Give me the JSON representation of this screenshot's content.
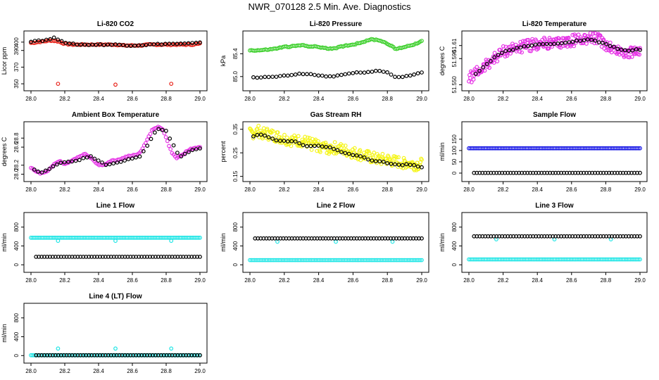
{
  "figure_title": "NWR_070128  2.5 Min. Ave. Diagnostics",
  "colors": {
    "black": "#000000",
    "red": "#e8231a",
    "green": "#3ccf2b",
    "magenta": "#e633e6",
    "yellow": "#f5f51a",
    "blue": "#1a1ae6",
    "cyan": "#22e6e6"
  },
  "chart_data": [
    {
      "id": "li820-co2",
      "type": "scatter",
      "title": "Li-820 CO2",
      "ylabel": "Licor ppm",
      "xlim": [
        28.0,
        29.0
      ],
      "ylim": [
        345,
        410
      ],
      "xticks": [
        "28.0",
        "28.2",
        "28.4",
        "28.6",
        "28.8",
        "29.0"
      ],
      "yticks": [
        "350",
        "370",
        "390",
        "400"
      ],
      "series": [
        {
          "name": "red",
          "color": "red",
          "x": [
            28.0,
            28.04,
            28.08,
            28.12,
            28.16,
            28.2,
            28.25,
            28.3,
            28.35,
            28.4,
            28.45,
            28.5,
            28.55,
            28.6,
            28.65,
            28.7,
            28.75,
            28.8,
            28.85,
            28.9,
            28.95,
            29.0,
            28.16,
            28.5,
            28.83
          ],
          "y": [
            399,
            400,
            401,
            402,
            401,
            398,
            397,
            397,
            397,
            397,
            397,
            397,
            396,
            396,
            396,
            397,
            397,
            397,
            397,
            397,
            397,
            398,
            350,
            349,
            350
          ]
        },
        {
          "name": "black",
          "color": "black",
          "x": [
            28.0,
            28.04,
            28.08,
            28.12,
            28.14,
            28.18,
            28.22,
            28.3,
            28.4,
            28.5,
            28.6,
            28.7,
            28.8,
            28.9,
            29.0
          ],
          "y": [
            401,
            402,
            402,
            404,
            405,
            402,
            398,
            397,
            397,
            397,
            396,
            397,
            398,
            398,
            399
          ]
        }
      ]
    },
    {
      "id": "li820-pressure",
      "type": "scatter",
      "title": "Li-820 Pressure",
      "ylabel": "kPa",
      "xlim": [
        28.0,
        29.0
      ],
      "ylim": [
        84.8,
        85.75
      ],
      "xticks": [
        "28.0",
        "28.2",
        "28.4",
        "28.6",
        "28.8",
        "29.0"
      ],
      "yticks": [
        "85.0",
        "85.4"
      ],
      "series": [
        {
          "name": "green",
          "color": "green",
          "x": [
            28.0,
            28.05,
            28.1,
            28.15,
            28.2,
            28.25,
            28.3,
            28.35,
            28.4,
            28.45,
            28.5,
            28.55,
            28.6,
            28.65,
            28.7,
            28.75,
            28.8,
            28.85,
            28.9,
            28.95,
            29.0
          ],
          "y": [
            85.46,
            85.46,
            85.47,
            85.49,
            85.52,
            85.53,
            85.55,
            85.53,
            85.52,
            85.49,
            85.5,
            85.54,
            85.56,
            85.6,
            85.65,
            85.64,
            85.58,
            85.48,
            85.52,
            85.56,
            85.62
          ]
        },
        {
          "name": "black",
          "color": "black",
          "x": [
            28.02,
            28.06,
            28.1,
            28.15,
            28.2,
            28.25,
            28.3,
            28.35,
            28.4,
            28.45,
            28.5,
            28.55,
            28.6,
            28.65,
            28.7,
            28.75,
            28.8,
            28.85,
            28.9,
            28.95,
            29.0
          ],
          "y": [
            84.98,
            84.98,
            84.99,
            85.0,
            85.01,
            85.03,
            85.05,
            85.04,
            85.02,
            85.0,
            85.01,
            85.04,
            85.06,
            85.07,
            85.09,
            85.1,
            85.07,
            84.99,
            85.0,
            85.03,
            85.08
          ]
        }
      ]
    },
    {
      "id": "li820-temperature",
      "type": "scatter",
      "title": "Li-820 Temperature",
      "ylabel": "degrees C",
      "xlim": [
        28.0,
        29.0
      ],
      "ylim": [
        51.545,
        51.628
      ],
      "xticks": [
        "28.0",
        "28.2",
        "28.4",
        "28.6",
        "28.8",
        "29.0"
      ],
      "yticks": [
        "51.550",
        "51.590",
        "51.61"
      ],
      "series": [
        {
          "name": "magenta",
          "color": "magenta",
          "x": [
            28.0,
            28.04,
            28.08,
            28.12,
            28.16,
            28.2,
            28.25,
            28.3,
            28.35,
            28.4,
            28.45,
            28.5,
            28.55,
            28.6,
            28.65,
            28.7,
            28.75,
            28.8,
            28.85,
            28.9,
            28.95,
            29.0
          ],
          "y": [
            51.56,
            51.567,
            51.575,
            51.585,
            51.593,
            51.6,
            51.605,
            51.608,
            51.61,
            51.612,
            51.613,
            51.612,
            51.615,
            51.617,
            51.62,
            51.622,
            51.62,
            51.612,
            51.604,
            51.6,
            51.598,
            51.605
          ]
        },
        {
          "name": "black",
          "color": "black",
          "x": [
            28.04,
            28.1,
            28.15,
            28.2,
            28.3,
            28.4,
            28.5,
            28.6,
            28.7,
            28.8,
            28.9,
            29.0
          ],
          "y": [
            51.566,
            51.58,
            51.592,
            51.6,
            51.607,
            51.612,
            51.612,
            51.616,
            51.62,
            51.612,
            51.602,
            51.604
          ]
        }
      ]
    },
    {
      "id": "ambient-box-temperature",
      "type": "scatter",
      "title": "Ambient Box Temperature",
      "ylabel": "degrees C",
      "xlim": [
        28.0,
        29.0
      ],
      "ylim": [
        27.9,
        29.1
      ],
      "xticks": [
        "28.0",
        "28.2",
        "28.4",
        "28.6",
        "28.8",
        "29.0"
      ],
      "yticks": [
        "28.0",
        "28.2",
        "28.6",
        "28.8"
      ],
      "series": [
        {
          "name": "magenta",
          "color": "magenta",
          "x": [
            28.0,
            28.03,
            28.06,
            28.1,
            28.13,
            28.17,
            28.2,
            28.24,
            28.28,
            28.32,
            28.36,
            28.4,
            28.44,
            28.48,
            28.52,
            28.56,
            28.6,
            28.64,
            28.68,
            28.72,
            28.75,
            28.78,
            28.8,
            28.83,
            28.86,
            28.9,
            28.94,
            28.97,
            29.0
          ],
          "y": [
            28.15,
            28.05,
            28.02,
            28.08,
            28.2,
            28.3,
            28.22,
            28.3,
            28.38,
            28.45,
            28.35,
            28.2,
            28.22,
            28.3,
            28.32,
            28.38,
            28.42,
            28.45,
            28.7,
            29.0,
            29.05,
            29.0,
            28.8,
            28.5,
            28.35,
            28.45,
            28.55,
            28.58,
            28.6
          ]
        },
        {
          "name": "black",
          "color": "black",
          "x": [
            28.02,
            28.06,
            28.12,
            28.18,
            28.25,
            28.35,
            28.45,
            28.55,
            28.65,
            28.75,
            28.8,
            28.88,
            28.95,
            29.0
          ],
          "y": [
            28.1,
            28.02,
            28.15,
            28.25,
            28.28,
            28.4,
            28.2,
            28.3,
            28.4,
            29.02,
            28.95,
            28.38,
            28.52,
            28.58
          ]
        }
      ]
    },
    {
      "id": "gas-stream-rh",
      "type": "scatter",
      "title": "Gas Stream RH",
      "ylabel": "percent",
      "xlim": [
        28.0,
        29.0
      ],
      "ylim": [
        0.14,
        0.37
      ],
      "xticks": [
        "28.0",
        "28.2",
        "28.4",
        "28.6",
        "28.8",
        "29.0"
      ],
      "yticks": [
        "0.15",
        "0.25",
        "0.35"
      ],
      "series": [
        {
          "name": "yellow",
          "color": "yellow",
          "x": [
            28.0,
            28.05,
            28.1,
            28.15,
            28.2,
            28.25,
            28.3,
            28.35,
            28.4,
            28.45,
            28.5,
            28.55,
            28.6,
            28.65,
            28.7,
            28.75,
            28.8,
            28.85,
            28.9,
            28.95,
            29.0
          ],
          "y": [
            0.33,
            0.34,
            0.33,
            0.32,
            0.31,
            0.3,
            0.3,
            0.29,
            0.28,
            0.27,
            0.27,
            0.26,
            0.25,
            0.24,
            0.23,
            0.22,
            0.22,
            0.21,
            0.21,
            0.2,
            0.2
          ]
        },
        {
          "name": "black",
          "color": "black",
          "x": [
            28.02,
            28.07,
            28.12,
            28.18,
            28.25,
            28.32,
            28.4,
            28.48,
            28.55,
            28.62,
            28.7,
            28.78,
            28.86,
            28.94,
            29.0
          ],
          "y": [
            0.32,
            0.33,
            0.31,
            0.3,
            0.3,
            0.28,
            0.28,
            0.27,
            0.25,
            0.24,
            0.22,
            0.21,
            0.2,
            0.2,
            0.19
          ]
        }
      ]
    },
    {
      "id": "sample-flow",
      "type": "scatter",
      "title": "Sample Flow",
      "ylabel": "ml/min",
      "xlim": [
        28.0,
        29.0
      ],
      "ylim": [
        -25,
        215
      ],
      "xticks": [
        "28.0",
        "28.2",
        "28.4",
        "28.6",
        "28.8",
        "29.0"
      ],
      "yticks": [
        "0",
        "50",
        "100",
        "150"
      ],
      "series": [
        {
          "name": "blue",
          "color": "blue",
          "x": [
            28.0,
            29.0
          ],
          "y": [
            110,
            110
          ]
        },
        {
          "name": "black",
          "color": "black",
          "x": [
            28.03,
            29.0
          ],
          "y": [
            1,
            1
          ]
        }
      ]
    },
    {
      "id": "line1-flow",
      "type": "scatter",
      "title": "Line 1 Flow",
      "ylabel": "ml/min",
      "xlim": [
        28.0,
        29.0
      ],
      "ylim": [
        -100,
        1050
      ],
      "xticks": [
        "28.0",
        "28.2",
        "28.4",
        "28.6",
        "28.8",
        "29.0"
      ],
      "yticks": [
        "0",
        "400",
        "800"
      ],
      "series": [
        {
          "name": "cyan",
          "color": "cyan",
          "x": [
            28.0,
            29.0,
            28.16,
            28.5,
            28.83
          ],
          "y": [
            575,
            575,
            510,
            510,
            510
          ]
        },
        {
          "name": "black",
          "color": "black",
          "x": [
            28.03,
            29.0
          ],
          "y": [
            170,
            170
          ]
        }
      ]
    },
    {
      "id": "line2-flow",
      "type": "scatter",
      "title": "Line 2 Flow",
      "ylabel": "ml/min",
      "xlim": [
        28.0,
        29.0
      ],
      "ylim": [
        -100,
        1050
      ],
      "xticks": [
        "28.0",
        "28.2",
        "28.4",
        "28.6",
        "28.8",
        "29.0"
      ],
      "yticks": [
        "0",
        "400",
        "800"
      ],
      "series": [
        {
          "name": "cyan",
          "color": "cyan",
          "x": [
            28.0,
            29.0,
            28.16,
            28.5,
            28.83
          ],
          "y": [
            100,
            100,
            490,
            490,
            490
          ]
        },
        {
          "name": "black",
          "color": "black",
          "x": [
            28.03,
            29.0
          ],
          "y": [
            560,
            560
          ]
        }
      ]
    },
    {
      "id": "line3-flow",
      "type": "scatter",
      "title": "Line 3 Flow",
      "ylabel": "ml/min",
      "xlim": [
        28.0,
        29.0
      ],
      "ylim": [
        -100,
        1050
      ],
      "xticks": [
        "28.0",
        "28.2",
        "28.4",
        "28.6",
        "28.8",
        "29.0"
      ],
      "yticks": [
        "0",
        "400",
        "800"
      ],
      "series": [
        {
          "name": "cyan",
          "color": "cyan",
          "x": [
            28.0,
            29.0,
            28.16,
            28.5,
            28.83
          ],
          "y": [
            115,
            115,
            540,
            540,
            540
          ]
        },
        {
          "name": "black",
          "color": "black",
          "x": [
            28.03,
            29.0
          ],
          "y": [
            605,
            605
          ]
        }
      ]
    },
    {
      "id": "line4-flow",
      "type": "scatter",
      "title": "Line 4 (LT) Flow",
      "ylabel": "ml/min",
      "xlim": [
        28.0,
        29.0
      ],
      "ylim": [
        -100,
        1050
      ],
      "xticks": [
        "28.0",
        "28.2",
        "28.4",
        "28.6",
        "28.8",
        "29.0"
      ],
      "yticks": [
        "0",
        "400",
        "800"
      ],
      "series": [
        {
          "name": "cyan",
          "color": "cyan",
          "x": [
            28.0,
            29.0,
            28.16,
            28.5,
            28.83
          ],
          "y": [
            8,
            8,
            150,
            150,
            150
          ]
        },
        {
          "name": "black",
          "color": "black",
          "x": [
            28.03,
            29.0
          ],
          "y": [
            8,
            8
          ]
        }
      ]
    }
  ]
}
